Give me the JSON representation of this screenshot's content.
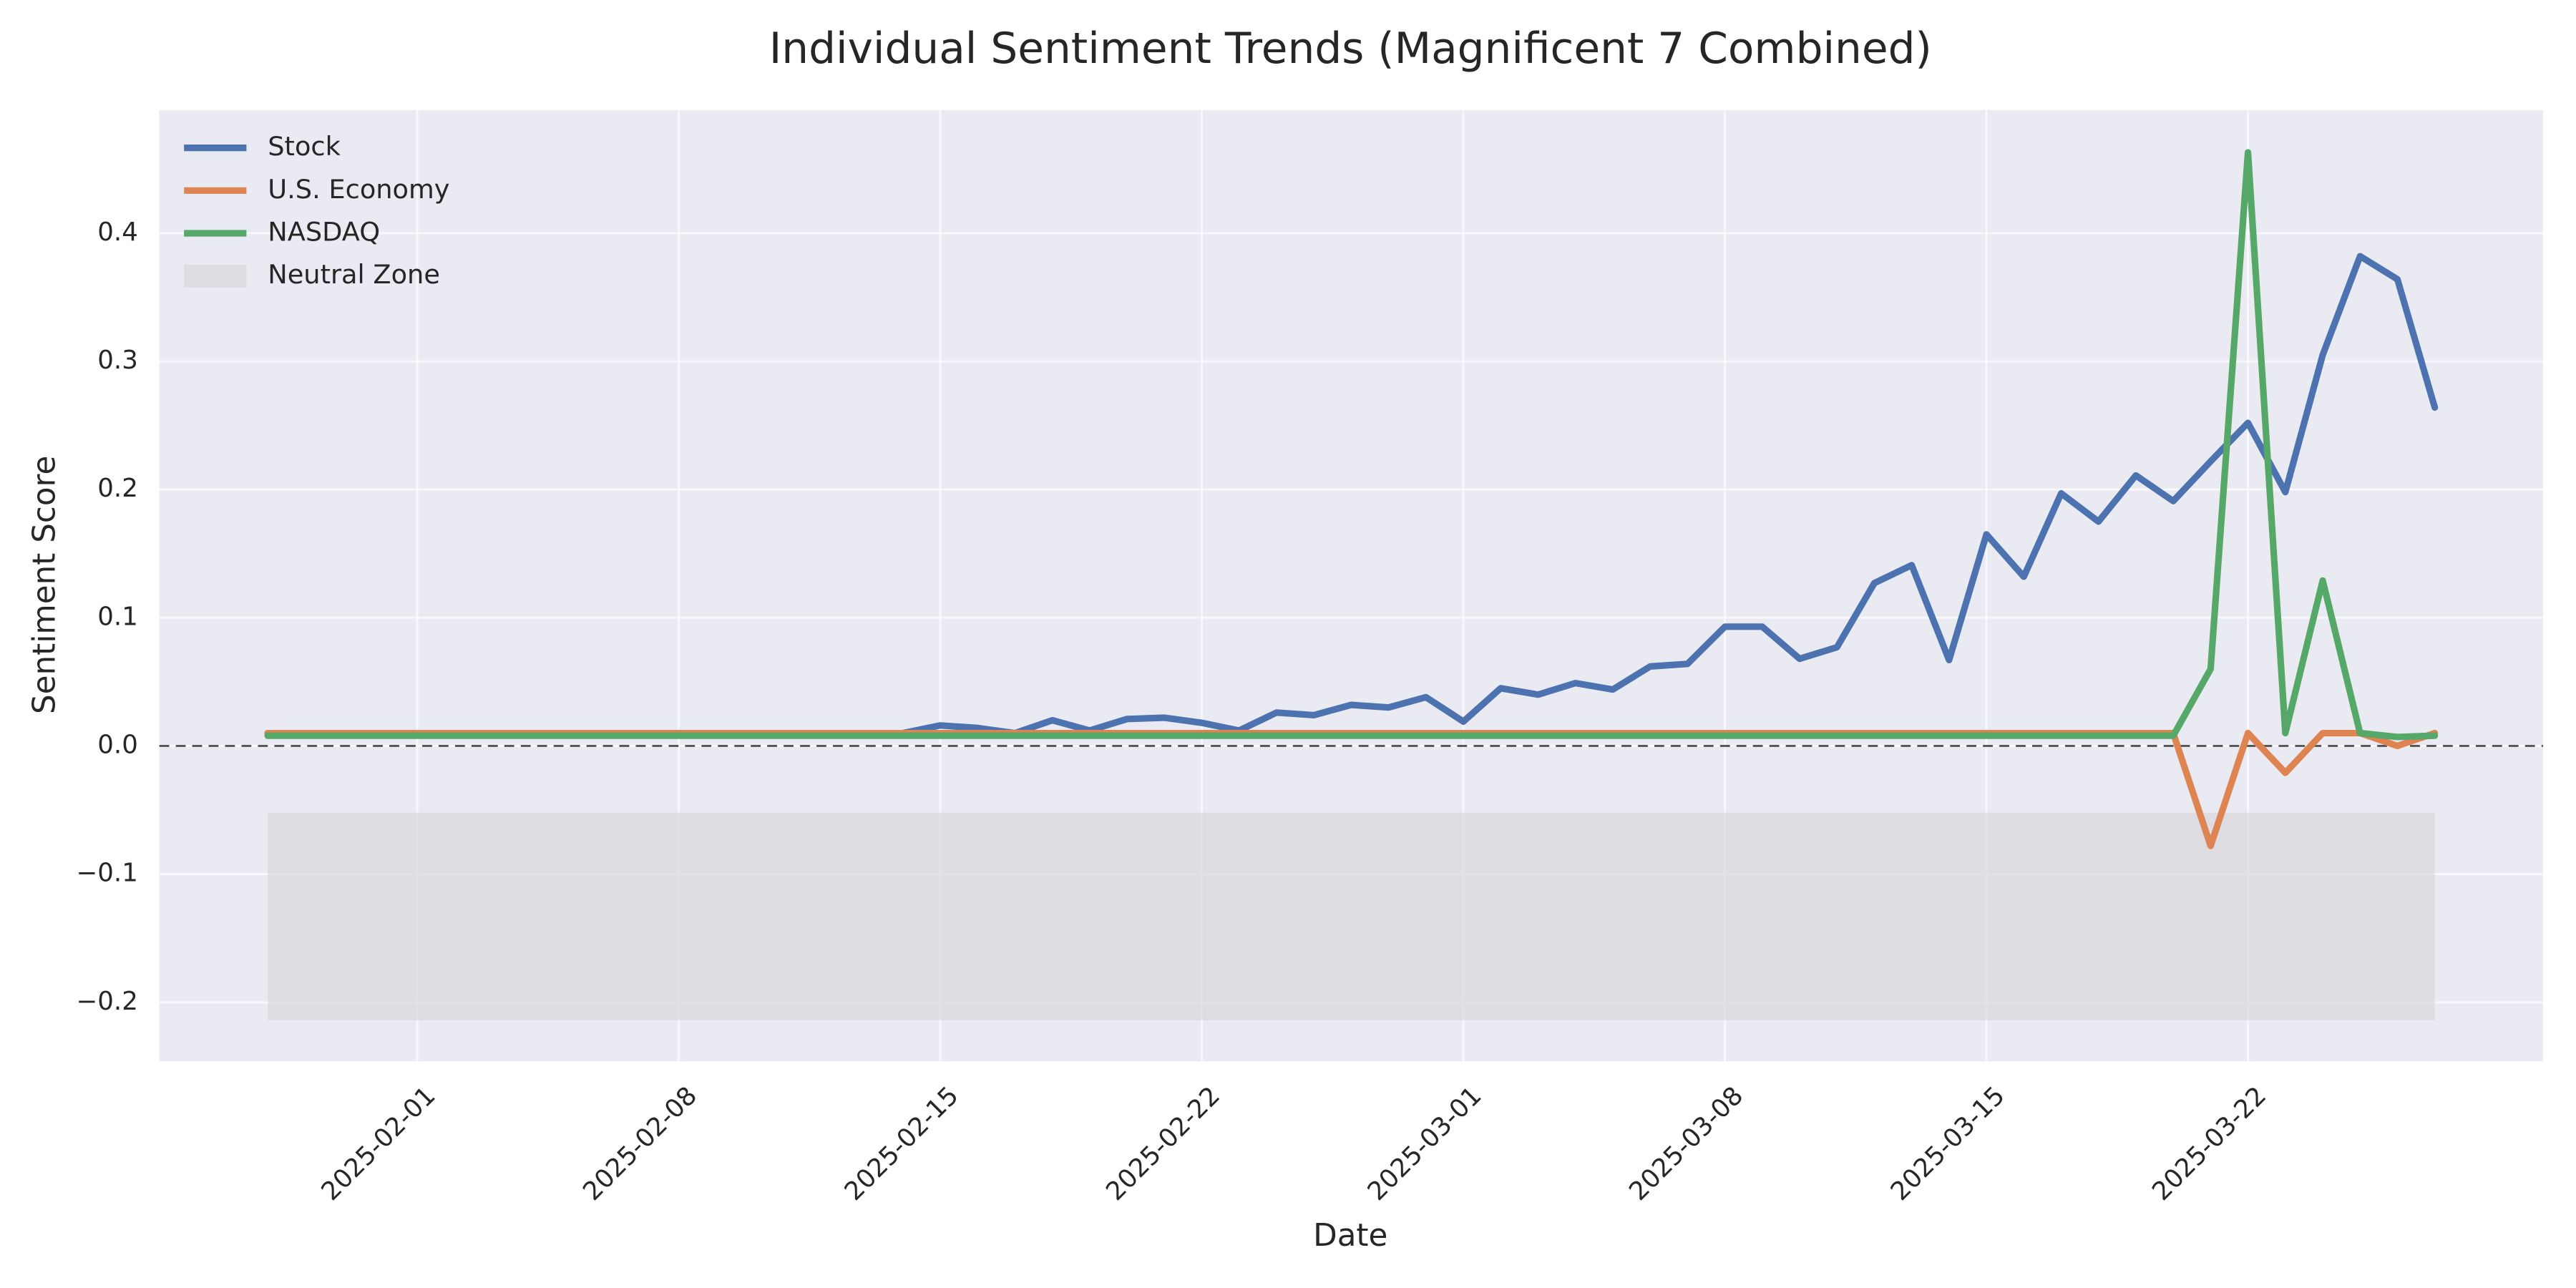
{
  "chart_data": {
    "type": "line",
    "title": "Individual Sentiment Trends (Magnificent 7 Combined)",
    "xlabel": "Date",
    "ylabel": "Sentiment Score",
    "x": [
      "2025-01-28",
      "2025-01-29",
      "2025-01-30",
      "2025-01-31",
      "2025-02-01",
      "2025-02-02",
      "2025-02-03",
      "2025-02-04",
      "2025-02-05",
      "2025-02-06",
      "2025-02-07",
      "2025-02-08",
      "2025-02-09",
      "2025-02-10",
      "2025-02-11",
      "2025-02-12",
      "2025-02-13",
      "2025-02-14",
      "2025-02-15",
      "2025-02-16",
      "2025-02-17",
      "2025-02-18",
      "2025-02-19",
      "2025-02-20",
      "2025-02-21",
      "2025-02-22",
      "2025-02-23",
      "2025-02-24",
      "2025-02-25",
      "2025-02-26",
      "2025-02-27",
      "2025-02-28",
      "2025-03-01",
      "2025-03-02",
      "2025-03-03",
      "2025-03-04",
      "2025-03-05",
      "2025-03-06",
      "2025-03-07",
      "2025-03-08",
      "2025-03-09",
      "2025-03-10",
      "2025-03-11",
      "2025-03-12",
      "2025-03-13",
      "2025-03-14",
      "2025-03-15",
      "2025-03-16",
      "2025-03-17",
      "2025-03-18",
      "2025-03-19",
      "2025-03-20",
      "2025-03-21",
      "2025-03-22",
      "2025-03-23",
      "2025-03-24",
      "2025-03-25",
      "2025-03-26",
      "2025-03-27"
    ],
    "series": [
      {
        "name": "Stock",
        "color": "#4c72b0",
        "values": [
          0.01,
          0.01,
          0.01,
          0.01,
          0.01,
          0.01,
          0.01,
          0.01,
          0.01,
          0.01,
          0.01,
          0.01,
          0.01,
          0.01,
          0.01,
          0.01,
          0.01,
          0.01,
          0.016,
          0.014,
          0.01,
          0.02,
          0.012,
          0.021,
          0.022,
          0.018,
          0.012,
          0.026,
          0.024,
          0.032,
          0.03,
          0.038,
          0.019,
          0.045,
          0.04,
          0.049,
          0.044,
          0.062,
          0.064,
          0.093,
          0.093,
          0.068,
          0.077,
          0.127,
          0.141,
          0.067,
          0.165,
          0.132,
          0.197,
          0.175,
          0.211,
          0.191,
          0.222,
          0.252,
          0.198,
          0.305,
          0.382,
          0.364,
          0.264
        ]
      },
      {
        "name": "U.S. Economy",
        "color": "#dd8452",
        "values": [
          0.01,
          0.01,
          0.01,
          0.01,
          0.01,
          0.01,
          0.01,
          0.01,
          0.01,
          0.01,
          0.01,
          0.01,
          0.01,
          0.01,
          0.01,
          0.01,
          0.01,
          0.01,
          0.01,
          0.01,
          0.01,
          0.01,
          0.01,
          0.01,
          0.01,
          0.01,
          0.01,
          0.01,
          0.01,
          0.01,
          0.01,
          0.01,
          0.01,
          0.01,
          0.01,
          0.01,
          0.01,
          0.01,
          0.01,
          0.01,
          0.01,
          0.01,
          0.01,
          0.01,
          0.01,
          0.01,
          0.01,
          0.01,
          0.01,
          0.01,
          0.01,
          0.01,
          -0.078,
          0.01,
          -0.021,
          0.01,
          0.01,
          0.0,
          0.01
        ]
      },
      {
        "name": "NASDAQ",
        "color": "#55a868",
        "values": [
          0.008,
          0.008,
          0.008,
          0.008,
          0.008,
          0.008,
          0.008,
          0.008,
          0.008,
          0.008,
          0.008,
          0.008,
          0.008,
          0.008,
          0.008,
          0.008,
          0.008,
          0.008,
          0.008,
          0.008,
          0.008,
          0.008,
          0.008,
          0.008,
          0.008,
          0.008,
          0.008,
          0.008,
          0.008,
          0.008,
          0.008,
          0.008,
          0.008,
          0.008,
          0.008,
          0.008,
          0.008,
          0.008,
          0.008,
          0.008,
          0.008,
          0.008,
          0.008,
          0.008,
          0.008,
          0.008,
          0.008,
          0.008,
          0.008,
          0.008,
          0.008,
          0.008,
          0.06,
          0.463,
          0.01,
          0.129,
          0.01,
          0.007,
          0.008
        ]
      }
    ],
    "neutral_zone": {
      "name": "Neutral Zone",
      "color": "#d8d8dc",
      "x": [
        "2025-01-28",
        "2025-03-27"
      ],
      "y": [
        -0.214,
        -0.052
      ]
    },
    "hline": 0,
    "xlim": [
      "2025-01-25T02:24",
      "2025-03-29T21:36"
    ],
    "xticks": [
      "2025-02-01",
      "2025-02-08",
      "2025-02-15",
      "2025-02-22",
      "2025-03-01",
      "2025-03-08",
      "2025-03-15",
      "2025-03-22"
    ],
    "ylim": [
      -0.246,
      0.496
    ],
    "yticks": [
      {
        "value": -0.2,
        "label": "−0.2"
      },
      {
        "value": -0.1,
        "label": "−0.1"
      },
      {
        "value": 0,
        "label": "0.0"
      },
      0.1,
      0.2,
      0.3,
      0.4
    ],
    "grid": true,
    "legend": "upper left"
  }
}
